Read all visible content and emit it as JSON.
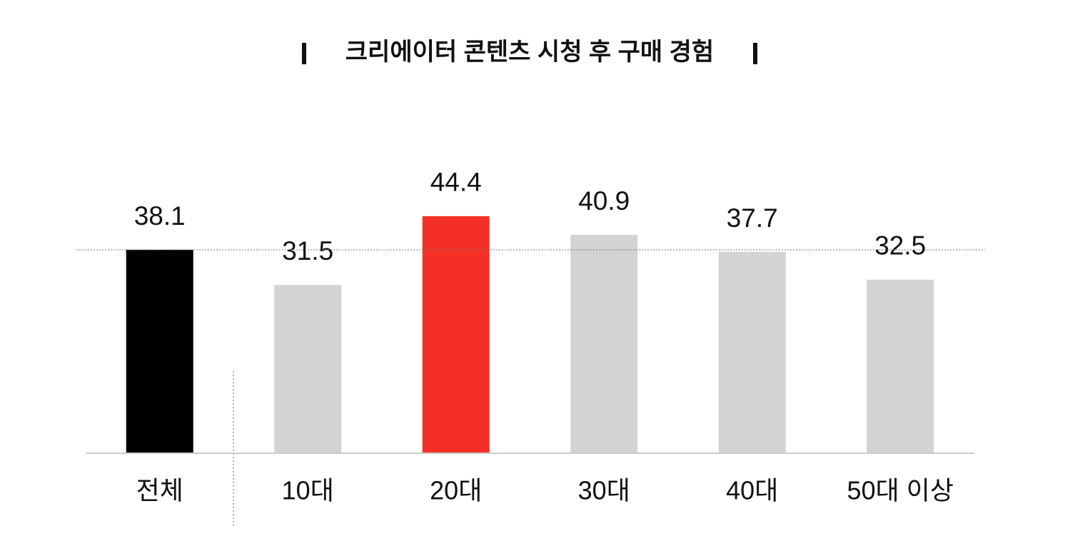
{
  "chart_data": {
    "type": "bar",
    "title": "크리에이터 콘텐츠 시청 후 구매 경험",
    "categories": [
      "전체",
      "10대",
      "20대",
      "30대",
      "40대",
      "50대 이상"
    ],
    "values": [
      38.1,
      31.5,
      44.4,
      40.9,
      37.7,
      32.5
    ],
    "colors": [
      "#000000",
      "#d3d3d3",
      "#f43026",
      "#d3d3d3",
      "#d3d3d3",
      "#d3d3d3"
    ],
    "ylim": [
      0,
      50
    ]
  }
}
